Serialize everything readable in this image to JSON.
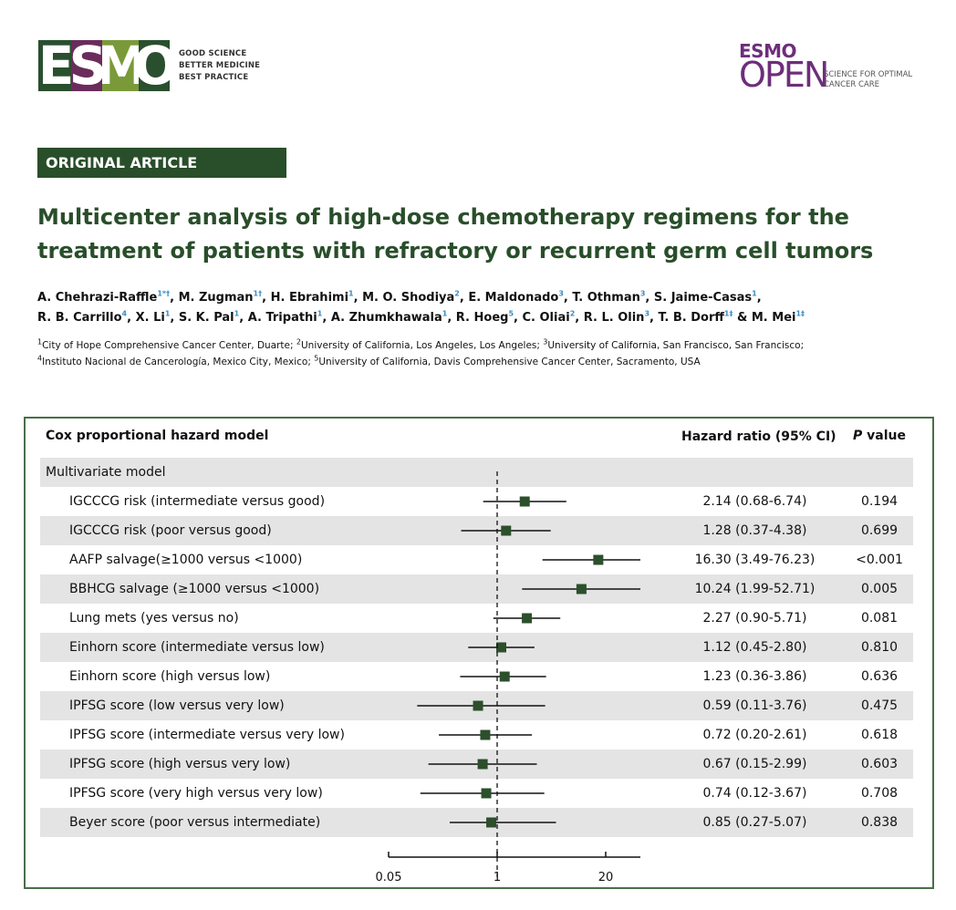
{
  "header": {
    "esmo_letters": [
      "E",
      "S",
      "M",
      "O"
    ],
    "esmo_colors": [
      "#2a4f2f",
      "#6a2c5c",
      "#7a9a3a",
      "#2a4f2f"
    ],
    "taglines": [
      "GOOD SCIENCE",
      "BETTER MEDICINE",
      "BEST PRACTICE"
    ],
    "open_top": "ESMO",
    "open_main": "OPEN",
    "open_tagline": "SCIENCE FOR OPTIMAL CANCER CARE"
  },
  "article": {
    "banner": "ORIGINAL ARTICLE",
    "title": "Multicenter analysis of high-dose chemotherapy regimens for the treatment of patients with refractory or recurrent germ cell tumors",
    "authors": [
      {
        "name": "A. Chehrazi-Raffle",
        "sup": "1*†"
      },
      {
        "name": "M. Zugman",
        "sup": "1†"
      },
      {
        "name": "H. Ebrahimi",
        "sup": "1"
      },
      {
        "name": "M. O. Shodiya",
        "sup": "2"
      },
      {
        "name": "E. Maldonado",
        "sup": "3"
      },
      {
        "name": "T. Othman",
        "sup": "3"
      },
      {
        "name": "S. Jaime-Casas",
        "sup": "1"
      },
      {
        "name": "R. B. Carrillo",
        "sup": "4"
      },
      {
        "name": "X. Li",
        "sup": "1"
      },
      {
        "name": "S. K. Pal",
        "sup": "1"
      },
      {
        "name": "A. Tripathi",
        "sup": "1"
      },
      {
        "name": "A. Zhumkhawala",
        "sup": "1"
      },
      {
        "name": "R. Hoeg",
        "sup": "5"
      },
      {
        "name": "C. Oliai",
        "sup": "2"
      },
      {
        "name": "R. L. Olin",
        "sup": "3"
      },
      {
        "name": "T. B. Dorff",
        "sup": "1‡"
      },
      {
        "name": "M. Mei",
        "sup": "1‡"
      }
    ],
    "affiliations": [
      {
        "sup": "1",
        "text": "City of Hope Comprehensive Cancer Center, Duarte;"
      },
      {
        "sup": "2",
        "text": "University of California, Los Angeles, Los Angeles;"
      },
      {
        "sup": "3",
        "text": "University of California, San Francisco, San Francisco;"
      },
      {
        "sup": "4",
        "text": "Instituto Nacional de Cancerología, Mexico City, Mexico;"
      },
      {
        "sup": "5",
        "text": "University of California, Davis Comprehensive Cancer Center, Sacramento, USA"
      }
    ]
  },
  "table": {
    "header_model": "Cox proportional hazard model",
    "header_hr": "Hazard ratio (95% CI)",
    "header_p_italic": "P",
    "header_p_rest": " value",
    "section": "Multivariate model",
    "marker_color": "#2c4f2c"
  },
  "chart_data": {
    "type": "forest",
    "x_scale": "log",
    "x_ticks": [
      0.05,
      1,
      20
    ],
    "x_tick_labels": [
      "0.05",
      "1",
      "20"
    ],
    "x_range": [
      0.05,
      20
    ],
    "reference_line": 1,
    "rows": [
      {
        "label": "IGCCCG risk (intermediate versus good)",
        "hr": 2.14,
        "lo": 0.68,
        "hi": 6.74,
        "hr_text": "2.14 (0.68-6.74)",
        "p": "0.194"
      },
      {
        "label": "IGCCCG risk (poor versus good)",
        "hr": 1.28,
        "lo": 0.37,
        "hi": 4.38,
        "hr_text": "1.28 (0.37-4.38)",
        "p": "0.699"
      },
      {
        "label": "AAFP salvage(≥1000 versus <1000)",
        "hr": 16.3,
        "lo": 3.49,
        "hi": 76.23,
        "hr_text": "16.30 (3.49-76.23)",
        "p": "<0.001"
      },
      {
        "label": "BBHCG salvage (≥1000 versus <1000)",
        "hr": 10.24,
        "lo": 1.99,
        "hi": 52.71,
        "hr_text": "10.24 (1.99-52.71)",
        "p": "0.005"
      },
      {
        "label": "Lung mets (yes versus no)",
        "hr": 2.27,
        "lo": 0.9,
        "hi": 5.71,
        "hr_text": "2.27 (0.90-5.71)",
        "p": "0.081"
      },
      {
        "label": "Einhorn score (intermediate versus low)",
        "hr": 1.12,
        "lo": 0.45,
        "hi": 2.8,
        "hr_text": "1.12 (0.45-2.80)",
        "p": "0.810"
      },
      {
        "label": "Einhorn score (high versus low)",
        "hr": 1.23,
        "lo": 0.36,
        "hi": 3.86,
        "hr_text": "1.23 (0.36-3.86)",
        "p": "0.636"
      },
      {
        "label": "IPFSG score (low versus very low)",
        "hr": 0.59,
        "lo": 0.11,
        "hi": 3.76,
        "hr_text": "0.59 (0.11-3.76)",
        "p": "0.475"
      },
      {
        "label": "IPFSG score (intermediate versus very low)",
        "hr": 0.72,
        "lo": 0.2,
        "hi": 2.61,
        "hr_text": "0.72 (0.20-2.61)",
        "p": "0.618"
      },
      {
        "label": "IPFSG score (high versus very low)",
        "hr": 0.67,
        "lo": 0.15,
        "hi": 2.99,
        "hr_text": "0.67 (0.15-2.99)",
        "p": "0.603"
      },
      {
        "label": "IPFSG score (very high versus very low)",
        "hr": 0.74,
        "lo": 0.12,
        "hi": 3.67,
        "hr_text": "0.74 (0.12-3.67)",
        "p": "0.708"
      },
      {
        "label": "Beyer score (poor versus intermediate)",
        "hr": 0.85,
        "lo": 0.27,
        "hi": 5.07,
        "hr_text": "0.85 (0.27-5.07)",
        "p": "0.838"
      }
    ]
  }
}
